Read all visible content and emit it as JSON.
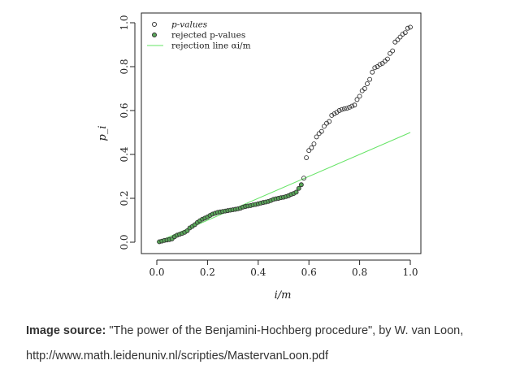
{
  "chart_data": {
    "type": "scatter",
    "xlabel": "i/m",
    "ylabel": "p_i",
    "xlim": [
      0.0,
      1.0
    ],
    "ylim": [
      0.0,
      1.0
    ],
    "xticks": [
      "0.0",
      "0.2",
      "0.4",
      "0.6",
      "0.8",
      "1.0"
    ],
    "yticks": [
      "0.0",
      "0.2",
      "0.4",
      "0.6",
      "0.8",
      "1.0"
    ],
    "grid": false,
    "legend_position": "top-left",
    "legend": {
      "pvalues": "p-values",
      "rejected": "rejected p-values",
      "line": "rejection line αi/m"
    },
    "colors": {
      "rejected_fill": "#5aa85a",
      "line": "#66e466",
      "point_stroke": "#333333"
    },
    "rejection_line": {
      "x": [
        0.0,
        1.0
      ],
      "y": [
        0.0,
        0.5
      ]
    },
    "series": [
      {
        "name": "rejected p-values",
        "x": [
          0.01,
          0.02,
          0.03,
          0.04,
          0.05,
          0.06,
          0.07,
          0.08,
          0.09,
          0.1,
          0.11,
          0.12,
          0.13,
          0.14,
          0.15,
          0.16,
          0.17,
          0.18,
          0.19,
          0.2,
          0.21,
          0.22,
          0.23,
          0.24,
          0.25,
          0.26,
          0.27,
          0.28,
          0.29,
          0.3,
          0.31,
          0.32,
          0.33,
          0.34,
          0.35,
          0.36,
          0.37,
          0.38,
          0.39,
          0.4,
          0.41,
          0.42,
          0.43,
          0.44,
          0.45,
          0.46,
          0.47,
          0.48,
          0.49,
          0.5,
          0.51,
          0.52,
          0.53,
          0.54,
          0.55,
          0.56,
          0.57
        ],
        "y": [
          0.002,
          0.005,
          0.008,
          0.01,
          0.012,
          0.015,
          0.025,
          0.032,
          0.036,
          0.04,
          0.045,
          0.052,
          0.065,
          0.072,
          0.08,
          0.09,
          0.098,
          0.105,
          0.11,
          0.115,
          0.122,
          0.128,
          0.132,
          0.136,
          0.138,
          0.14,
          0.142,
          0.144,
          0.146,
          0.148,
          0.15,
          0.152,
          0.155,
          0.16,
          0.163,
          0.165,
          0.167,
          0.17,
          0.172,
          0.175,
          0.178,
          0.181,
          0.183,
          0.186,
          0.19,
          0.195,
          0.198,
          0.2,
          0.203,
          0.205,
          0.208,
          0.212,
          0.218,
          0.222,
          0.228,
          0.245,
          0.262
        ]
      },
      {
        "name": "p-values",
        "x": [
          0.58,
          0.59,
          0.6,
          0.61,
          0.62,
          0.63,
          0.64,
          0.65,
          0.66,
          0.67,
          0.68,
          0.69,
          0.7,
          0.71,
          0.72,
          0.73,
          0.74,
          0.75,
          0.76,
          0.77,
          0.78,
          0.79,
          0.8,
          0.81,
          0.82,
          0.83,
          0.84,
          0.85,
          0.86,
          0.87,
          0.88,
          0.89,
          0.9,
          0.91,
          0.92,
          0.93,
          0.94,
          0.95,
          0.96,
          0.97,
          0.98,
          0.99,
          1.0
        ],
        "y": [
          0.292,
          0.385,
          0.418,
          0.43,
          0.448,
          0.48,
          0.495,
          0.505,
          0.528,
          0.542,
          0.55,
          0.578,
          0.585,
          0.592,
          0.6,
          0.605,
          0.608,
          0.61,
          0.615,
          0.62,
          0.625,
          0.65,
          0.665,
          0.69,
          0.7,
          0.722,
          0.742,
          0.775,
          0.795,
          0.8,
          0.81,
          0.815,
          0.825,
          0.835,
          0.86,
          0.872,
          0.912,
          0.922,
          0.935,
          0.948,
          0.955,
          0.975,
          0.98
        ]
      }
    ]
  },
  "caption": {
    "bold": "Image source:",
    "text": " \"The power of the Benjamini-Hochberg procedure\", by W. van Loon,",
    "url": "http://www.math.leidenuniv.nl/scripties/MastervanLoon.pdf"
  }
}
